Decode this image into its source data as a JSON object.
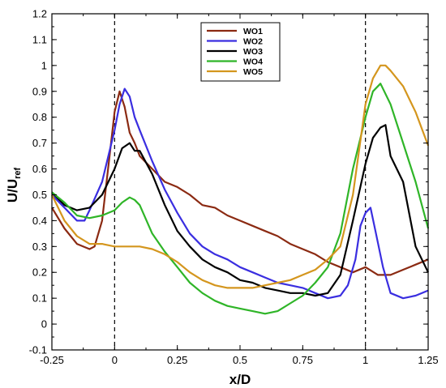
{
  "chart_data": {
    "type": "line",
    "title": "",
    "xlabel": "x/D",
    "ylabel": "U/U",
    "ylabel_subscript": "ref",
    "xlim": [
      -0.25,
      1.25
    ],
    "ylim": [
      -0.1,
      1.2
    ],
    "xticks": [
      -0.25,
      0,
      0.25,
      0.5,
      0.75,
      1,
      1.25
    ],
    "xtick_labels": [
      "-0.25",
      "0",
      "0.25",
      "0.5",
      "0.75",
      "1",
      "1.25"
    ],
    "yticks": [
      -0.1,
      0,
      0.1,
      0.2,
      0.3,
      0.4,
      0.5,
      0.6,
      0.7,
      0.8,
      0.9,
      1,
      1.1,
      1.2
    ],
    "ytick_labels": [
      "-0.1",
      "0",
      "0.1",
      "0.2",
      "0.3",
      "0.4",
      "0.5",
      "0.6",
      "0.7",
      "0.8",
      "0.9",
      "1",
      "1.1",
      "1.2"
    ],
    "grid": false,
    "legend_position": "top-center",
    "reference_lines": [
      0,
      1
    ],
    "series": [
      {
        "name": "WO1",
        "color": "#8b2a12",
        "x": [
          -0.25,
          -0.2,
          -0.15,
          -0.1,
          -0.08,
          -0.05,
          -0.02,
          0,
          0.02,
          0.04,
          0.06,
          0.08,
          0.1,
          0.15,
          0.2,
          0.25,
          0.3,
          0.35,
          0.4,
          0.45,
          0.5,
          0.55,
          0.6,
          0.65,
          0.7,
          0.75,
          0.8,
          0.85,
          0.9,
          0.95,
          1.0,
          1.05,
          1.1,
          1.15,
          1.2,
          1.25
        ],
        "y": [
          0.45,
          0.37,
          0.31,
          0.29,
          0.3,
          0.4,
          0.65,
          0.82,
          0.9,
          0.84,
          0.74,
          0.7,
          0.65,
          0.6,
          0.55,
          0.53,
          0.5,
          0.46,
          0.45,
          0.42,
          0.4,
          0.38,
          0.36,
          0.34,
          0.31,
          0.29,
          0.27,
          0.24,
          0.22,
          0.2,
          0.22,
          0.19,
          0.19,
          0.21,
          0.23,
          0.25
        ]
      },
      {
        "name": "WO2",
        "color": "#3a2ee0",
        "x": [
          -0.25,
          -0.2,
          -0.15,
          -0.12,
          -0.1,
          -0.05,
          0,
          0.02,
          0.04,
          0.06,
          0.08,
          0.1,
          0.15,
          0.2,
          0.25,
          0.3,
          0.35,
          0.4,
          0.45,
          0.5,
          0.55,
          0.6,
          0.65,
          0.7,
          0.75,
          0.8,
          0.85,
          0.9,
          0.93,
          0.96,
          0.98,
          1.0,
          1.02,
          1.04,
          1.07,
          1.1,
          1.15,
          1.2,
          1.25
        ],
        "y": [
          0.5,
          0.45,
          0.4,
          0.4,
          0.44,
          0.55,
          0.75,
          0.85,
          0.91,
          0.88,
          0.8,
          0.75,
          0.63,
          0.52,
          0.43,
          0.35,
          0.3,
          0.27,
          0.25,
          0.22,
          0.2,
          0.18,
          0.16,
          0.15,
          0.14,
          0.12,
          0.1,
          0.11,
          0.15,
          0.25,
          0.38,
          0.43,
          0.45,
          0.36,
          0.22,
          0.12,
          0.1,
          0.11,
          0.13
        ]
      },
      {
        "name": "WO3",
        "color": "#000000",
        "x": [
          -0.25,
          -0.2,
          -0.15,
          -0.1,
          -0.05,
          0,
          0.03,
          0.06,
          0.08,
          0.1,
          0.15,
          0.2,
          0.25,
          0.3,
          0.35,
          0.4,
          0.45,
          0.5,
          0.55,
          0.6,
          0.65,
          0.7,
          0.75,
          0.8,
          0.85,
          0.9,
          0.95,
          1.0,
          1.03,
          1.06,
          1.08,
          1.1,
          1.15,
          1.2,
          1.25
        ],
        "y": [
          0.51,
          0.46,
          0.44,
          0.45,
          0.5,
          0.6,
          0.68,
          0.7,
          0.67,
          0.67,
          0.58,
          0.46,
          0.36,
          0.3,
          0.25,
          0.22,
          0.2,
          0.17,
          0.16,
          0.14,
          0.13,
          0.12,
          0.12,
          0.11,
          0.12,
          0.19,
          0.4,
          0.62,
          0.72,
          0.76,
          0.77,
          0.65,
          0.55,
          0.3,
          0.2
        ]
      },
      {
        "name": "WO4",
        "color": "#2fb528",
        "x": [
          -0.25,
          -0.2,
          -0.15,
          -0.1,
          -0.05,
          0,
          0.03,
          0.06,
          0.08,
          0.1,
          0.15,
          0.2,
          0.25,
          0.3,
          0.35,
          0.4,
          0.45,
          0.5,
          0.55,
          0.6,
          0.65,
          0.7,
          0.75,
          0.8,
          0.85,
          0.9,
          0.95,
          1.0,
          1.03,
          1.06,
          1.1,
          1.15,
          1.2,
          1.25
        ],
        "y": [
          0.51,
          0.47,
          0.42,
          0.41,
          0.42,
          0.44,
          0.47,
          0.49,
          0.48,
          0.46,
          0.35,
          0.28,
          0.22,
          0.16,
          0.12,
          0.09,
          0.07,
          0.06,
          0.05,
          0.04,
          0.05,
          0.08,
          0.11,
          0.16,
          0.22,
          0.35,
          0.6,
          0.8,
          0.9,
          0.93,
          0.85,
          0.7,
          0.55,
          0.37
        ]
      },
      {
        "name": "WO5",
        "color": "#d4961e",
        "x": [
          -0.25,
          -0.2,
          -0.15,
          -0.1,
          -0.05,
          0,
          0.05,
          0.1,
          0.15,
          0.2,
          0.25,
          0.3,
          0.35,
          0.4,
          0.45,
          0.5,
          0.55,
          0.6,
          0.65,
          0.7,
          0.75,
          0.8,
          0.85,
          0.9,
          0.95,
          1.0,
          1.03,
          1.06,
          1.08,
          1.1,
          1.15,
          1.2,
          1.25
        ],
        "y": [
          0.5,
          0.4,
          0.34,
          0.31,
          0.31,
          0.3,
          0.3,
          0.3,
          0.29,
          0.27,
          0.24,
          0.2,
          0.17,
          0.15,
          0.14,
          0.14,
          0.14,
          0.15,
          0.16,
          0.17,
          0.19,
          0.21,
          0.25,
          0.3,
          0.5,
          0.85,
          0.95,
          1.0,
          1.0,
          0.98,
          0.92,
          0.82,
          0.69
        ]
      }
    ]
  }
}
